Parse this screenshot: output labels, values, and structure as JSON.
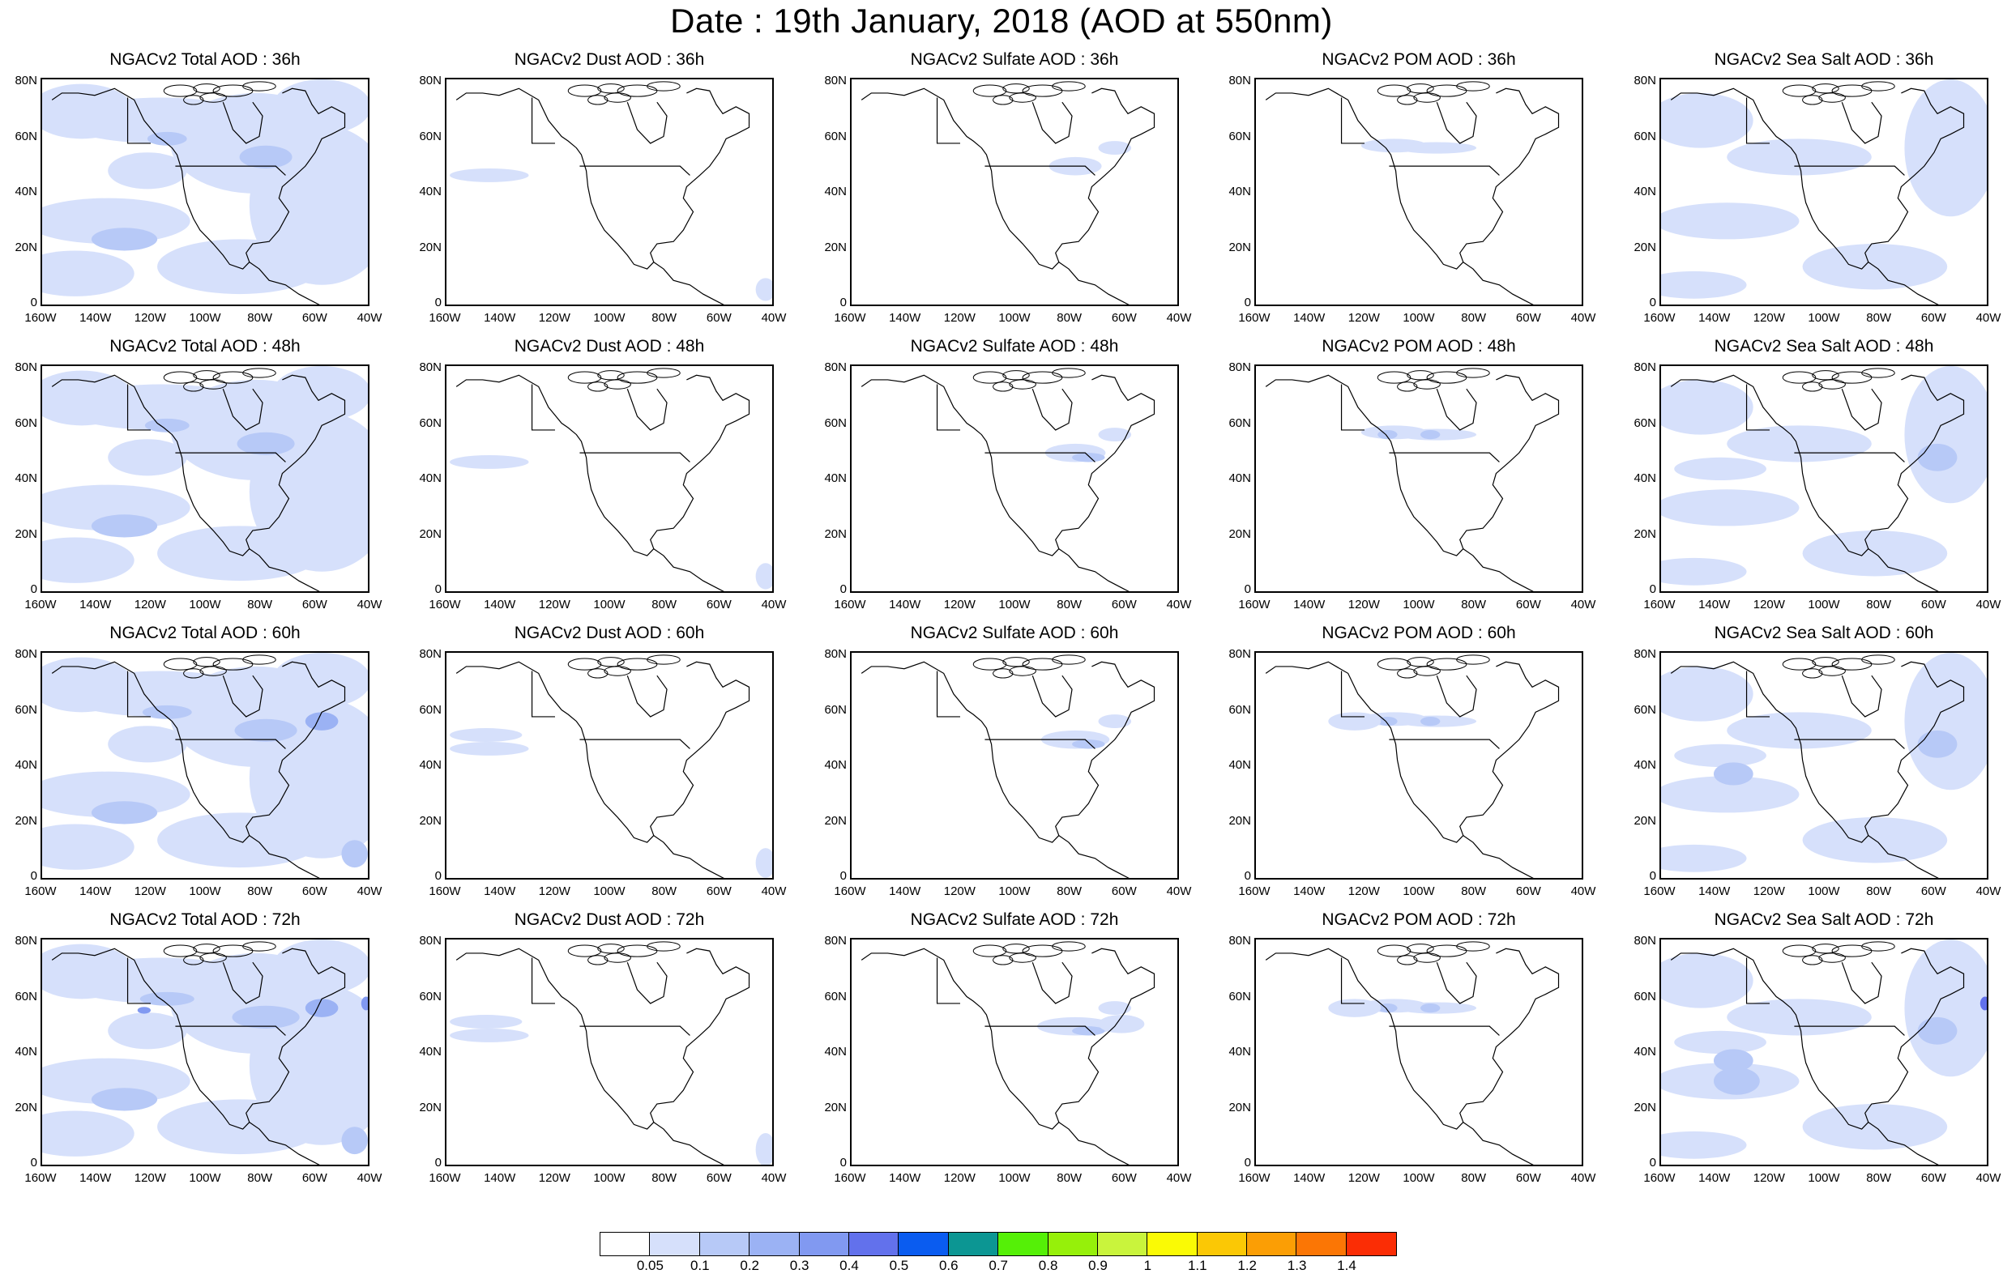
{
  "title": "Date : 19th January, 2018 (AOD at 550nm)",
  "column_titles": [
    [
      "NGACv2 Total AOD : 36h",
      "NGACv2 Dust AOD : 36h",
      "NGACv2 Sulfate AOD : 36h",
      "NGACv2 POM AOD : 36h",
      "NGACv2 Sea Salt AOD : 36h"
    ],
    [
      "NGACv2 Total AOD : 48h",
      "NGACv2 Dust AOD : 48h",
      "NGACv2 Sulfate AOD : 48h",
      "NGACv2 POM AOD : 48h",
      "NGACv2 Sea Salt AOD : 48h"
    ],
    [
      "NGACv2 Total AOD : 60h",
      "NGACv2 Dust AOD : 60h",
      "NGACv2 Sulfate AOD : 60h",
      "NGACv2 POM AOD : 60h",
      "NGACv2 Sea Salt AOD : 60h"
    ],
    [
      "NGACv2 Total AOD : 72h",
      "NGACv2 Dust AOD : 72h",
      "NGACv2 Sulfate AOD : 72h",
      "NGACv2 POM AOD : 72h",
      "NGACv2 Sea Salt  AOD : 72h"
    ]
  ],
  "lat_labels": [
    "80N",
    "60N",
    "40N",
    "20N",
    "0"
  ],
  "lon_labels": [
    "160W",
    "140W",
    "120W",
    "100W",
    "80W",
    "60W",
    "40W"
  ],
  "colorbar": {
    "colors": [
      "#ffffff",
      "#d6e0fb",
      "#b7c9f7",
      "#9bb2f4",
      "#8199f1",
      "#6271ec",
      "#0a5cf0",
      "#0c9693",
      "#55f007",
      "#96f00a",
      "#c9f43c",
      "#fafa05",
      "#fbc805",
      "#fb9e05",
      "#fb7605",
      "#fb2d05"
    ],
    "labels": [
      "0.05",
      "0.1",
      "0.2",
      "0.3",
      "0.4",
      "0.5",
      "0.6",
      "0.7",
      "0.8",
      "0.9",
      "1",
      "1.1",
      "1.2",
      "1.3",
      "1.4"
    ]
  }
}
